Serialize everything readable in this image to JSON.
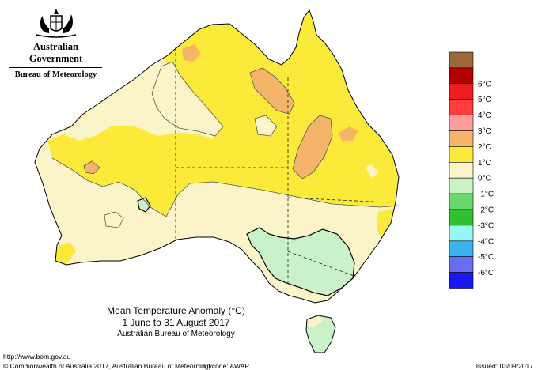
{
  "government": {
    "name": "Australian Government",
    "bureau": "Bureau of Meteorology"
  },
  "map": {
    "title": "Mean Temperature Anomaly (°C)",
    "period": "1 June to 31 August 2017",
    "source": "Australian Bureau of Meteorology"
  },
  "legend": {
    "items": [
      {
        "label": "",
        "color": "#9c6a3a"
      },
      {
        "label": "6°C",
        "color": "#b30000"
      },
      {
        "label": "5°C",
        "color": "#ee1c1c"
      },
      {
        "label": "4°C",
        "color": "#ff3d3d"
      },
      {
        "label": "3°C",
        "color": "#ff9c9c"
      },
      {
        "label": "2°C",
        "color": "#f5b469"
      },
      {
        "label": "1°C",
        "color": "#fbea3a"
      },
      {
        "label": "0°C",
        "color": "#fbf4c9"
      },
      {
        "label": "-1°C",
        "color": "#c9f2c9"
      },
      {
        "label": "-2°C",
        "color": "#6ad86a"
      },
      {
        "label": "-3°C",
        "color": "#2fc12f"
      },
      {
        "label": "-4°C",
        "color": "#9af5f5"
      },
      {
        "label": "-5°C",
        "color": "#3ab3f5"
      },
      {
        "label": "-6°C",
        "color": "#6b6bf5"
      },
      {
        "label": "",
        "color": "#1818f5"
      }
    ]
  },
  "footer": {
    "url": "http://www.bom.gov.au",
    "copyright": "© Commonwealth of Australia 2017, Australian Bureau of Meteorology",
    "id_code": "ID code: AWAP",
    "issued": "Issued: 03/09/2017"
  }
}
